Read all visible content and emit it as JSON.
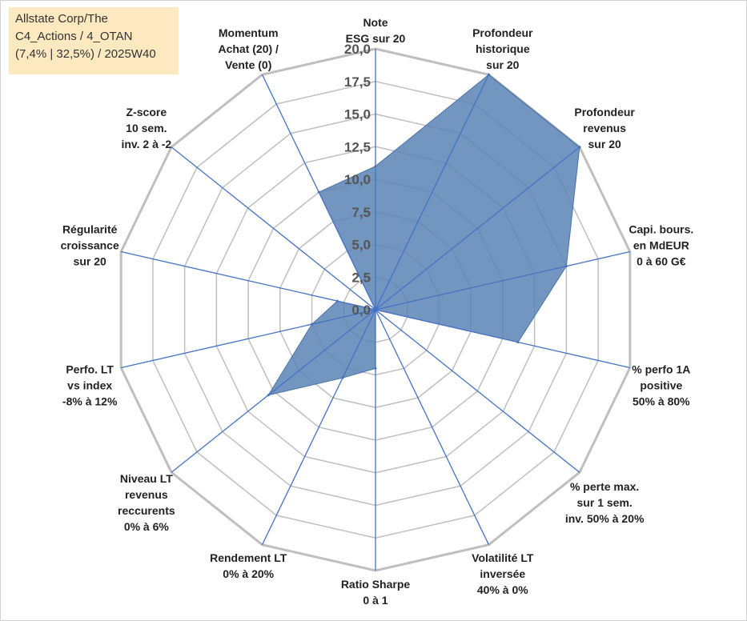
{
  "info_box": {
    "line1": "Allstate Corp/The",
    "line2": "C4_Actions / 4_OTAN",
    "line3": "(7,4% | 32,5%) / 2025W40"
  },
  "chart_data": {
    "type": "radar",
    "rmax": 20,
    "ticks": [
      "0,0",
      "2,5",
      "5,0",
      "7,5",
      "10,0",
      "12,5",
      "15,0",
      "17,5",
      "20,0"
    ],
    "grid": true,
    "fill_color": "#5b84b5",
    "axis_color": "#4472c4",
    "grid_color": "#bfbfbf",
    "categories": [
      [
        "Note",
        "ESG sur 20"
      ],
      [
        "Profondeur",
        "historique",
        "sur 20"
      ],
      [
        "Profondeur",
        "revenus",
        "sur 20"
      ],
      [
        "Capi. bours.",
        "en MdEUR",
        "0 à 60 G€"
      ],
      [
        "% perfo 1A",
        "positive",
        "50% à 80%"
      ],
      [
        "% perte max.",
        "sur 1 sem.",
        "inv. 50% à 20%"
      ],
      [
        "Volatilité LT",
        "inversée",
        "40% à 0%"
      ],
      [
        "Ratio Sharpe",
        "0 à 1"
      ],
      [
        "Rendement LT",
        "0% à 20%"
      ],
      [
        "Niveau LT",
        "revenus",
        "reccurents",
        "0% à 6%"
      ],
      [
        "Perfo. LT",
        "vs index",
        "-8% à 12%"
      ],
      [
        "Régularité",
        "croissance",
        "sur 20"
      ],
      [
        "Z-score",
        "10 sem.",
        "inv. 2 à -2"
      ],
      [
        "Momentum",
        "Achat (20) /",
        "Vente (0)"
      ]
    ],
    "values": [
      11,
      20,
      20,
      15,
      11.2,
      0,
      0,
      4.5,
      5.8,
      10.5,
      5,
      3,
      0,
      10
    ]
  }
}
